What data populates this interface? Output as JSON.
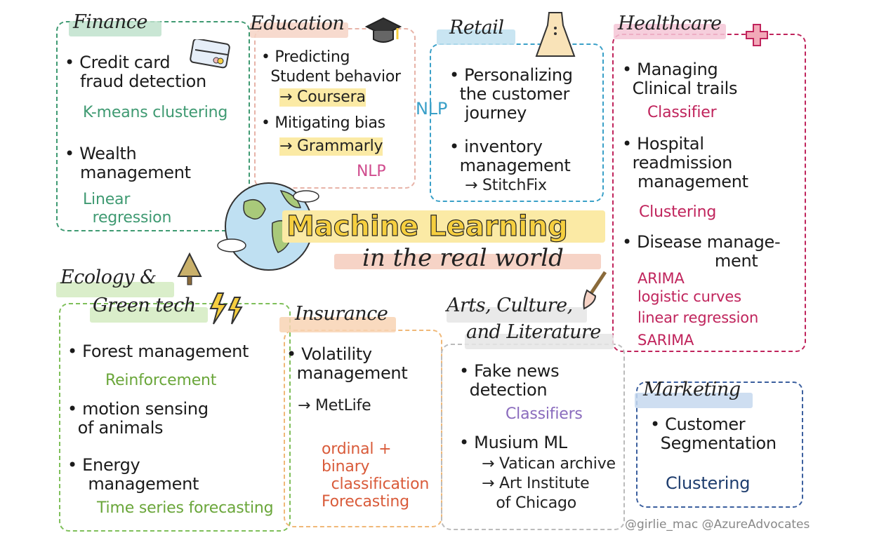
{
  "main": {
    "title": "Machine Learning",
    "subtitle": "in the real world",
    "credit": "@girlie_mac @AzureAdvocates"
  },
  "finance": {
    "title": "Finance",
    "items": [
      {
        "label": "• Credit card\n   fraud detection",
        "note": "K-means clustering"
      },
      {
        "label": "• Wealth\n   management",
        "note": "Linear\n  regression"
      }
    ]
  },
  "education": {
    "title": "Education",
    "items": [
      {
        "label": "• Predicting\n  Student behavior",
        "note": "→ Coursera"
      },
      {
        "label": "• Mitigating bias",
        "note": "→ Grammarly"
      }
    ],
    "nlp": "NLP"
  },
  "retail": {
    "title": "Retail",
    "nlp": "NLP",
    "items": [
      {
        "label": "• Personalizing\n  the customer\n   journey"
      },
      {
        "label": "• inventory\n  management",
        "note": "→ StitchFix"
      }
    ]
  },
  "healthcare": {
    "title": "Healthcare",
    "items": [
      {
        "label": "• Managing\n  Clinical trails",
        "note": "Classifier"
      },
      {
        "label": "• Hospital\n  readmission\n   management",
        "note": "Clustering"
      },
      {
        "label": "• Disease manage-\n                  ment"
      }
    ],
    "methods": [
      "ARIMA",
      "logistic curves",
      "linear regression",
      "SARIMA"
    ]
  },
  "ecology": {
    "title1": "Ecology &",
    "title2": "Green tech",
    "items": [
      {
        "label": "• Forest management",
        "note": "Reinforcement"
      },
      {
        "label": "• motion sensing\n  of animals"
      },
      {
        "label": "• Energy\n    management",
        "note": "Time series forecasting"
      }
    ]
  },
  "insurance": {
    "title": "Insurance",
    "items": [
      {
        "label": "• Volatility\n  management",
        "note": "→ MetLife"
      }
    ],
    "methods": "ordinal +\nbinary\n  classification\nForecasting"
  },
  "arts": {
    "title1": "Arts, Culture,",
    "title2": "and Literature",
    "items": [
      {
        "label": "• Fake news\n  detection",
        "note": "Classifiers"
      },
      {
        "label": "• Musium ML",
        "note": "→ Vatican archive\n→ Art Institute\n   of Chicago"
      }
    ]
  },
  "marketing": {
    "title": "Marketing",
    "items": [
      {
        "label": "• Customer\n  Segmentation",
        "note": "Clustering"
      }
    ]
  }
}
